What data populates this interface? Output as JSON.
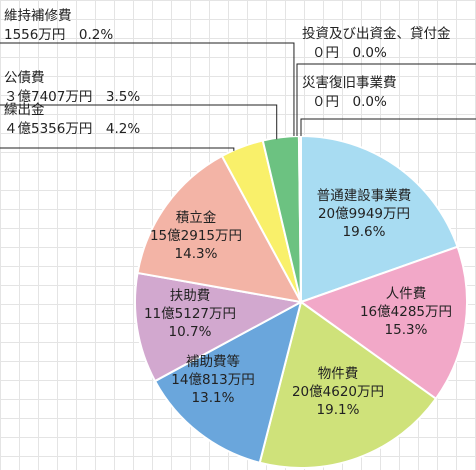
{
  "chart_data": {
    "type": "pie",
    "title": "",
    "start_angle_deg": 0,
    "direction": "clockwise",
    "slices": [
      {
        "label": "普通建設事業費",
        "amount": "20億9949万円",
        "percent_text": "19.6%",
        "value": 19.6,
        "color": "#a8dcf2"
      },
      {
        "label": "人件費",
        "amount": "16億4285万円",
        "percent_text": "15.3%",
        "value": 15.3,
        "color": "#f2a8c8"
      },
      {
        "label": "物件費",
        "amount": "20億4620万円",
        "percent_text": "19.1%",
        "value": 19.1,
        "color": "#cfe27a"
      },
      {
        "label": "補助費等",
        "amount": "14億813万円",
        "percent_text": "13.1%",
        "value": 13.1,
        "color": "#6aa6dc"
      },
      {
        "label": "扶助費",
        "amount": "11億5127万円",
        "percent_text": "10.7%",
        "value": 10.7,
        "color": "#d2a8cf"
      },
      {
        "label": "積立金",
        "amount": "15億2915万円",
        "percent_text": "14.3%",
        "value": 14.3,
        "color": "#f3b4a6"
      },
      {
        "label": "繰出金",
        "amount": "４億5356万円",
        "percent_text": "4.2%",
        "value": 4.2,
        "color": "#f9f06a"
      },
      {
        "label": "公債費",
        "amount": "３億7407万円",
        "percent_text": "3.5%",
        "value": 3.5,
        "color": "#6cc281"
      },
      {
        "label": "維持補修費",
        "amount": "1556万円",
        "percent_text": "0.2%",
        "value": 0.2,
        "color": "#e0502a"
      },
      {
        "label": "投資及び出資金、貸付金",
        "amount": "０円",
        "percent_text": "0.0%",
        "value": 0.0,
        "color": "#999999"
      },
      {
        "label": "災害復旧事業費",
        "amount": "０円",
        "percent_text": "0.0%",
        "value": 0.0,
        "color": "#999999"
      }
    ],
    "grid": true,
    "legend": "none"
  }
}
